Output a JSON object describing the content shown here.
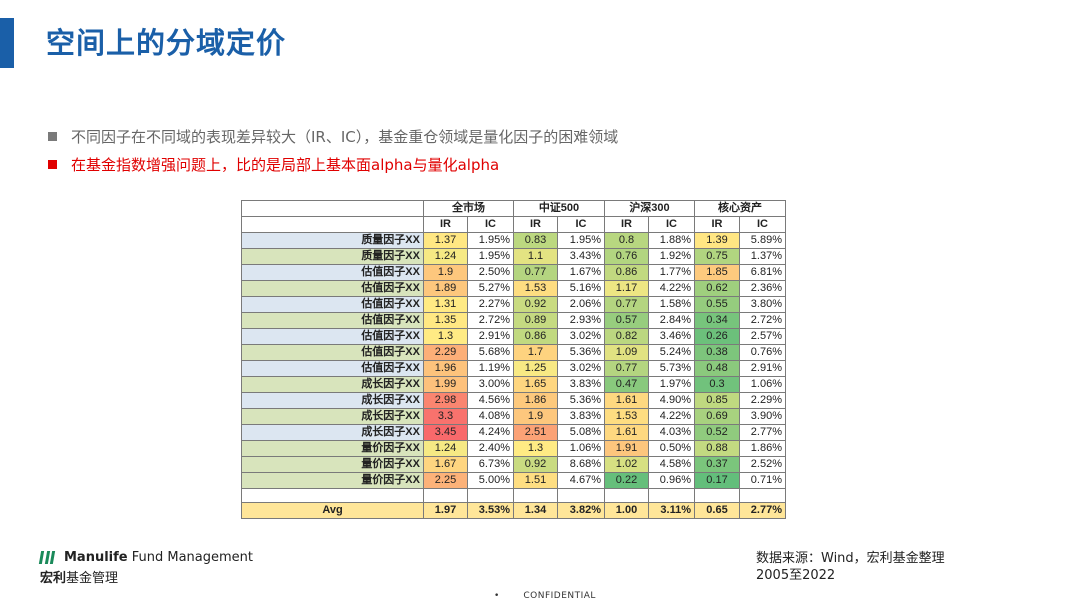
{
  "title": "空间上的分域定价",
  "bullets": [
    "不同因子在不同域的表现差异较大（IR、IC），基金重仓领域是量化因子的困难领域",
    "在基金指数增强问题上，比的是局部上基本面alpha与量化alpha"
  ],
  "table": {
    "groups": [
      "全市场",
      "中证500",
      "沪深300",
      "核心资产"
    ],
    "sub_headers": [
      "IR",
      "IC"
    ],
    "rows": [
      {
        "label": "质量因子XX",
        "values": [
          "1.37",
          "1.95%",
          "0.83",
          "1.95%",
          "0.8",
          "1.88%",
          "1.39",
          "5.89%"
        ],
        "ir": [
          1.37,
          0.83,
          0.8,
          1.39
        ]
      },
      {
        "label": "质量因子XX",
        "values": [
          "1.24",
          "1.95%",
          "1.1",
          "3.43%",
          "0.76",
          "1.92%",
          "0.75",
          "1.37%"
        ],
        "ir": [
          1.24,
          1.1,
          0.76,
          0.75
        ]
      },
      {
        "label": "估值因子XX",
        "values": [
          "1.9",
          "2.50%",
          "0.77",
          "1.67%",
          "0.86",
          "1.77%",
          "1.85",
          "6.81%"
        ],
        "ir": [
          1.9,
          0.77,
          0.86,
          1.85
        ]
      },
      {
        "label": "估值因子XX",
        "values": [
          "1.89",
          "5.27%",
          "1.53",
          "5.16%",
          "1.17",
          "4.22%",
          "0.62",
          "2.36%"
        ],
        "ir": [
          1.89,
          1.53,
          1.17,
          0.62
        ]
      },
      {
        "label": "估值因子XX",
        "values": [
          "1.31",
          "2.27%",
          "0.92",
          "2.06%",
          "0.77",
          "1.58%",
          "0.55",
          "3.80%"
        ],
        "ir": [
          1.31,
          0.92,
          0.77,
          0.55
        ]
      },
      {
        "label": "估值因子XX",
        "values": [
          "1.35",
          "2.72%",
          "0.89",
          "2.93%",
          "0.57",
          "2.84%",
          "0.34",
          "2.72%"
        ],
        "ir": [
          1.35,
          0.89,
          0.57,
          0.34
        ]
      },
      {
        "label": "估值因子XX",
        "values": [
          "1.3",
          "2.91%",
          "0.86",
          "3.02%",
          "0.82",
          "3.46%",
          "0.26",
          "2.57%"
        ],
        "ir": [
          1.3,
          0.86,
          0.82,
          0.26
        ]
      },
      {
        "label": "估值因子XX",
        "values": [
          "2.29",
          "5.68%",
          "1.7",
          "5.36%",
          "1.09",
          "5.24%",
          "0.38",
          "0.76%"
        ],
        "ir": [
          2.29,
          1.7,
          1.09,
          0.38
        ]
      },
      {
        "label": "估值因子XX",
        "values": [
          "1.96",
          "1.19%",
          "1.25",
          "3.02%",
          "0.77",
          "5.73%",
          "0.48",
          "2.91%"
        ],
        "ir": [
          1.96,
          1.25,
          0.77,
          0.48
        ]
      },
      {
        "label": "成长因子XX",
        "values": [
          "1.99",
          "3.00%",
          "1.65",
          "3.83%",
          "0.47",
          "1.97%",
          "0.3",
          "1.06%"
        ],
        "ir": [
          1.99,
          1.65,
          0.47,
          0.3
        ]
      },
      {
        "label": "成长因子XX",
        "values": [
          "2.98",
          "4.56%",
          "1.86",
          "5.36%",
          "1.61",
          "4.90%",
          "0.85",
          "2.29%"
        ],
        "ir": [
          2.98,
          1.86,
          1.61,
          0.85
        ]
      },
      {
        "label": "成长因子XX",
        "values": [
          "3.3",
          "4.08%",
          "1.9",
          "3.83%",
          "1.53",
          "4.22%",
          "0.69",
          "3.90%"
        ],
        "ir": [
          3.3,
          1.9,
          1.53,
          0.69
        ]
      },
      {
        "label": "成长因子XX",
        "values": [
          "3.45",
          "4.24%",
          "2.51",
          "5.08%",
          "1.61",
          "4.03%",
          "0.52",
          "2.77%"
        ],
        "ir": [
          3.45,
          2.51,
          1.61,
          0.52
        ]
      },
      {
        "label": "量价因子XX",
        "values": [
          "1.24",
          "2.40%",
          "1.3",
          "1.06%",
          "1.91",
          "0.50%",
          "0.88",
          "1.86%"
        ],
        "ir": [
          1.24,
          1.3,
          1.91,
          0.88
        ]
      },
      {
        "label": "量价因子XX",
        "values": [
          "1.67",
          "6.73%",
          "0.92",
          "8.68%",
          "1.02",
          "4.58%",
          "0.37",
          "2.52%"
        ],
        "ir": [
          1.67,
          0.92,
          1.02,
          0.37
        ]
      },
      {
        "label": "量价因子XX",
        "values": [
          "2.25",
          "5.00%",
          "1.51",
          "4.67%",
          "0.22",
          "0.96%",
          "0.17",
          "0.71%"
        ],
        "ir": [
          2.25,
          1.51,
          0.22,
          0.17
        ]
      }
    ],
    "avg": {
      "label": "Avg",
      "values": [
        "1.97",
        "3.53%",
        "1.34",
        "3.82%",
        "1.00",
        "3.11%",
        "0.65",
        "2.77%"
      ]
    }
  },
  "footer": {
    "logo_en_bold": "Manulife",
    "logo_en_rest": " Fund Management",
    "logo_cn_bold": "宏利",
    "logo_cn_rest": "基金管理",
    "source_line1": "数据来源：Wind，宏利基金整理",
    "source_line2": "2005至2022",
    "confidential": "CONFIDENTIAL"
  },
  "colors": {
    "title": "#1a5fa8",
    "highlight": "#e00000",
    "label_blue": "#dce6f1",
    "label_green": "#d8e4bc",
    "avg": "#ffe699"
  }
}
